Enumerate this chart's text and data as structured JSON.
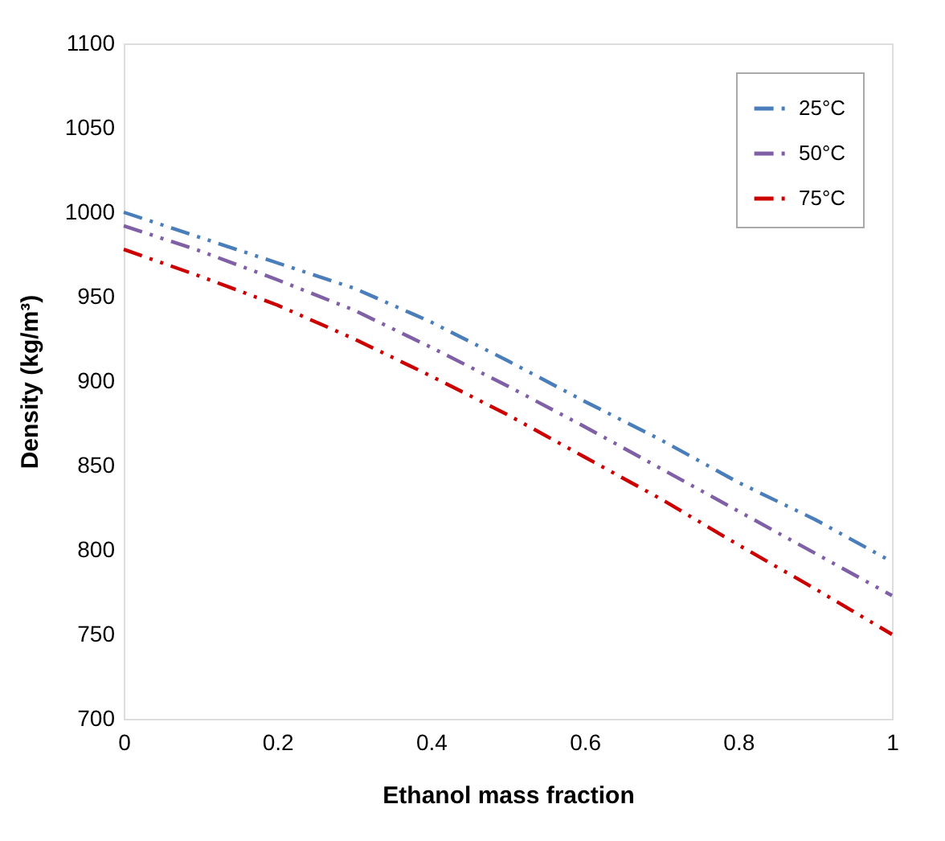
{
  "chart_data": {
    "type": "line",
    "xlabel": "Ethanol mass fraction",
    "ylabel": "Density (kg/m³)",
    "x": [
      0,
      0.1,
      0.2,
      0.3,
      0.4,
      0.5,
      0.6,
      0.7,
      0.8,
      0.9,
      1.0
    ],
    "series": [
      {
        "name": "25°C",
        "color": "#4a7ebb",
        "values": [
          1000,
          985,
          970,
          955,
          935,
          912,
          888,
          865,
          840,
          818,
          793
        ]
      },
      {
        "name": "50°C",
        "color": "#7f5fa5",
        "values": [
          992,
          977,
          960,
          942,
          920,
          897,
          873,
          848,
          823,
          798,
          773
        ]
      },
      {
        "name": "75°C",
        "color": "#cc0000",
        "values": [
          978,
          962,
          945,
          925,
          903,
          880,
          855,
          830,
          803,
          777,
          750
        ]
      }
    ],
    "xlim": [
      0,
      1
    ],
    "xticks": [
      0,
      0.2,
      0.4,
      0.6,
      0.8,
      1
    ],
    "ylim": [
      700,
      1100
    ],
    "yticks": [
      700,
      750,
      800,
      850,
      900,
      950,
      1000,
      1050,
      1100
    ],
    "grid": false,
    "legend": "top right",
    "line_style": "dashed",
    "marker": "none"
  }
}
